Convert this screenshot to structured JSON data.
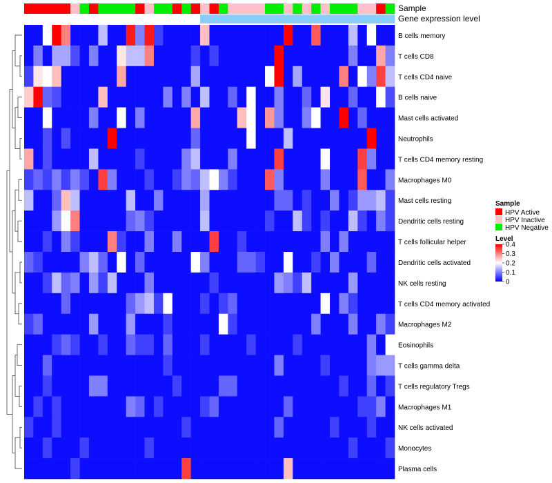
{
  "chart_data": {
    "type": "heatmap",
    "annotation_titles": {
      "sample": "Sample",
      "gene": "Gene expression level"
    },
    "row_labels": [
      "B cells memory",
      "T cells CD8",
      "T cells CD4 naive",
      "B cells naive",
      "Mast cells activated",
      "Neutrophils",
      "T cells CD4 memory resting",
      "Macrophages M0",
      "Mast cells resting",
      "Dendritic cells resting",
      "T cells follicular helper",
      "Dendritic cells activated",
      "NK cells resting",
      "T cells CD4 memory activated",
      "Macrophages M2",
      "Eosinophils",
      "T cells gamma delta",
      "T cells regulatory  Tregs",
      "Macrophages M1",
      "NK cells activated",
      "Monocytes",
      "Plasma cells"
    ],
    "sample_groups": [
      "A",
      "A",
      "A",
      "A",
      "A",
      "I",
      "N",
      "A",
      "N",
      "N",
      "N",
      "N",
      "A",
      "I",
      "N",
      "N",
      "A",
      "N",
      "A",
      "I",
      "A",
      "N",
      "I",
      "I",
      "I",
      "I",
      "N",
      "N",
      "I",
      "N",
      "I",
      "N",
      "I",
      "N",
      "N",
      "N",
      "I",
      "I",
      "A",
      "N"
    ],
    "gene_expression_level": [
      "low",
      "low",
      "low",
      "low",
      "low",
      "low",
      "low",
      "low",
      "low",
      "low",
      "low",
      "low",
      "low",
      "low",
      "low",
      "low",
      "low",
      "low",
      "low",
      "high",
      "high",
      "high",
      "high",
      "high",
      "high",
      "high",
      "high",
      "high",
      "high",
      "high",
      "high",
      "high",
      "high",
      "high",
      "high",
      "high",
      "high",
      "high",
      "high",
      "high"
    ],
    "legend": {
      "sample_title": "Sample",
      "sample_entries": [
        {
          "key": "A",
          "label": "HPV Active",
          "color": "#ff0000"
        },
        {
          "key": "I",
          "label": "HPV Inactive",
          "color": "#ffc0cb"
        },
        {
          "key": "N",
          "label": "HPV Negative",
          "color": "#00ee00"
        }
      ],
      "level_title": "Level",
      "level_ticks": [
        "0.4",
        "0.3",
        "0.2",
        "0.1",
        "0"
      ],
      "level_tick_values": [
        0.4,
        0.3,
        0.2,
        0.1,
        0
      ]
    },
    "gene_level_colors": {
      "low": "#ffffff",
      "high": "#87cefa"
    },
    "color_scale": {
      "low": "#0000ff",
      "mid": "#ffffff",
      "high": "#ff0000",
      "min": 0,
      "mid_value": 0.2,
      "max": 0.4
    },
    "values": [
      [
        0.01,
        0.01,
        0.2,
        0.4,
        0.3,
        0.01,
        0.01,
        0.01,
        0.15,
        0.01,
        0.01,
        0.38,
        0.1,
        0.38,
        0.05,
        0.01,
        0.01,
        0.01,
        0.01,
        0.25,
        0.01,
        0.01,
        0.01,
        0.01,
        0.01,
        0.01,
        0.01,
        0.01,
        0.4,
        0.01,
        0.01,
        0.33,
        0.01,
        0.01,
        0.01,
        0.15,
        0.01,
        0.2,
        0.01,
        0.01
      ],
      [
        0.01,
        0.1,
        0.01,
        0.13,
        0.13,
        0.06,
        0.01,
        0.1,
        0.01,
        0.01,
        0.22,
        0.15,
        0.15,
        0.3,
        0.01,
        0.01,
        0.01,
        0.01,
        0.05,
        0.01,
        0.05,
        0.01,
        0.01,
        0.01,
        0.01,
        0.01,
        0.01,
        0.4,
        0.01,
        0.01,
        0.01,
        0.01,
        0.01,
        0.01,
        0.01,
        0.1,
        0.01,
        0.01,
        0.27,
        0.1
      ],
      [
        0.05,
        0.22,
        0.2,
        0.25,
        0.01,
        0.01,
        0.01,
        0.01,
        0.01,
        0.01,
        0.27,
        0.01,
        0.01,
        0.01,
        0.01,
        0.01,
        0.01,
        0.01,
        0.13,
        0.01,
        0.01,
        0.01,
        0.01,
        0.01,
        0.01,
        0.01,
        0.2,
        0.4,
        0.01,
        0.13,
        0.01,
        0.01,
        0.01,
        0.01,
        0.3,
        0.01,
        0.2,
        0.1,
        0.35,
        0.15
      ],
      [
        0.24,
        0.4,
        0.08,
        0.06,
        0.01,
        0.01,
        0.01,
        0.01,
        0.25,
        0.01,
        0.01,
        0.01,
        0.01,
        0.01,
        0.01,
        0.1,
        0.01,
        0.1,
        0.01,
        0.15,
        0.01,
        0.01,
        0.08,
        0.01,
        0.2,
        0.01,
        0.01,
        0.1,
        0.01,
        0.01,
        0.08,
        0.01,
        0.22,
        0.01,
        0.01,
        0.08,
        0.01,
        0.01,
        0.2,
        0.06
      ],
      [
        0.01,
        0.01,
        0.2,
        0.01,
        0.01,
        0.01,
        0.01,
        0.1,
        0.01,
        0.01,
        0.2,
        0.01,
        0.1,
        0.01,
        0.01,
        0.01,
        0.01,
        0.01,
        0.27,
        0.01,
        0.01,
        0.01,
        0.01,
        0.25,
        0.2,
        0.01,
        0.28,
        0.1,
        0.01,
        0.01,
        0.1,
        0.2,
        0.01,
        0.01,
        0.4,
        0.01,
        0.08,
        0.01,
        0.01,
        0.01
      ],
      [
        0.01,
        0.01,
        0.06,
        0.01,
        0.06,
        0.01,
        0.01,
        0.01,
        0.01,
        0.4,
        0.01,
        0.01,
        0.01,
        0.01,
        0.01,
        0.01,
        0.01,
        0.01,
        0.08,
        0.01,
        0.01,
        0.01,
        0.01,
        0.01,
        0.2,
        0.01,
        0.01,
        0.01,
        0.15,
        0.01,
        0.01,
        0.01,
        0.01,
        0.01,
        0.01,
        0.01,
        0.01,
        0.4,
        0.01,
        0.01
      ],
      [
        0.27,
        0.01,
        0.06,
        0.01,
        0.01,
        0.01,
        0.01,
        0.15,
        0.01,
        0.01,
        0.01,
        0.01,
        0.05,
        0.01,
        0.01,
        0.01,
        0.01,
        0.1,
        0.15,
        0.01,
        0.01,
        0.01,
        0.1,
        0.01,
        0.01,
        0.01,
        0.01,
        0.35,
        0.01,
        0.01,
        0.01,
        0.01,
        0.2,
        0.01,
        0.01,
        0.01,
        0.35,
        0.1,
        0.01,
        0.01
      ],
      [
        0.05,
        0.08,
        0.05,
        0.1,
        0.05,
        0.1,
        0.06,
        0.01,
        0.35,
        0.1,
        0.01,
        0.01,
        0.01,
        0.05,
        0.01,
        0.01,
        0.05,
        0.1,
        0.08,
        0.15,
        0.2,
        0.1,
        0.05,
        0.01,
        0.01,
        0.01,
        0.33,
        0.1,
        0.01,
        0.01,
        0.01,
        0.01,
        0.1,
        0.01,
        0.01,
        0.01,
        0.33,
        0.01,
        0.01,
        0.1
      ],
      [
        0.15,
        0.01,
        0.01,
        0.08,
        0.25,
        0.15,
        0.01,
        0.01,
        0.01,
        0.01,
        0.01,
        0.15,
        0.01,
        0.01,
        0.1,
        0.01,
        0.01,
        0.01,
        0.01,
        0.13,
        0.01,
        0.01,
        0.01,
        0.01,
        0.01,
        0.01,
        0.01,
        0.08,
        0.08,
        0.01,
        0.05,
        0.01,
        0.01,
        0.1,
        0.01,
        0.05,
        0.12,
        0.12,
        0.15,
        0.05
      ],
      [
        0.01,
        0.01,
        0.01,
        0.12,
        0.2,
        0.3,
        0.01,
        0.01,
        0.01,
        0.01,
        0.01,
        0.08,
        0.1,
        0.05,
        0.01,
        0.01,
        0.01,
        0.01,
        0.01,
        0.15,
        0.01,
        0.01,
        0.01,
        0.01,
        0.01,
        0.01,
        0.05,
        0.01,
        0.01,
        0.15,
        0.05,
        0.01,
        0.05,
        0.01,
        0.01,
        0.15,
        0.05,
        0.01,
        0.1,
        0.05
      ],
      [
        0.01,
        0.01,
        0.05,
        0.01,
        0.1,
        0.05,
        0.01,
        0.01,
        0.01,
        0.3,
        0.05,
        0.01,
        0.01,
        0.1,
        0.01,
        0.01,
        0.1,
        0.01,
        0.01,
        0.01,
        0.35,
        0.01,
        0.01,
        0.05,
        0.01,
        0.01,
        0.01,
        0.01,
        0.01,
        0.01,
        0.01,
        0.01,
        0.1,
        0.01,
        0.1,
        0.01,
        0.01,
        0.01,
        0.01,
        0.01
      ],
      [
        0.08,
        0.05,
        0.01,
        0.01,
        0.01,
        0.01,
        0.1,
        0.15,
        0.08,
        0.01,
        0.2,
        0.01,
        0.08,
        0.01,
        0.01,
        0.01,
        0.01,
        0.01,
        0.2,
        0.1,
        0.01,
        0.01,
        0.01,
        0.08,
        0.08,
        0.05,
        0.01,
        0.01,
        0.2,
        0.01,
        0.01,
        0.05,
        0.01,
        0.1,
        0.01,
        0.01,
        0.01,
        0.08,
        0.01,
        0.01
      ],
      [
        0.01,
        0.01,
        0.05,
        0.15,
        0.08,
        0.1,
        0.01,
        0.12,
        0.05,
        0.15,
        0.01,
        0.01,
        0.01,
        0.1,
        0.01,
        0.01,
        0.01,
        0.01,
        0.01,
        0.01,
        0.05,
        0.01,
        0.01,
        0.01,
        0.01,
        0.01,
        0.01,
        0.12,
        0.1,
        0.05,
        0.15,
        0.01,
        0.01,
        0.01,
        0.01,
        0.12,
        0.01,
        0.01,
        0.01,
        0.01
      ],
      [
        0.01,
        0.01,
        0.01,
        0.01,
        0.08,
        0.01,
        0.01,
        0.01,
        0.01,
        0.01,
        0.01,
        0.08,
        0.12,
        0.15,
        0.05,
        0.2,
        0.01,
        0.01,
        0.01,
        0.05,
        0.01,
        0.05,
        0.08,
        0.01,
        0.01,
        0.01,
        0.01,
        0.01,
        0.01,
        0.01,
        0.01,
        0.01,
        0.2,
        0.01,
        0.1,
        0.05,
        0.01,
        0.01,
        0.01,
        0.01
      ],
      [
        0.05,
        0.08,
        0.01,
        0.01,
        0.01,
        0.01,
        0.01,
        0.12,
        0.01,
        0.01,
        0.01,
        0.12,
        0.01,
        0.01,
        0.01,
        0.05,
        0.01,
        0.01,
        0.01,
        0.01,
        0.01,
        0.2,
        0.05,
        0.01,
        0.01,
        0.01,
        0.01,
        0.01,
        0.01,
        0.01,
        0.01,
        0.1,
        0.01,
        0.01,
        0.01,
        0.1,
        0.01,
        0.01,
        0.1,
        0.05
      ],
      [
        0.01,
        0.01,
        0.01,
        0.05,
        0.08,
        0.05,
        0.01,
        0.01,
        0.05,
        0.01,
        0.01,
        0.08,
        0.05,
        0.05,
        0.01,
        0.08,
        0.01,
        0.01,
        0.01,
        0.05,
        0.01,
        0.01,
        0.01,
        0.01,
        0.05,
        0.01,
        0.01,
        0.01,
        0.01,
        0.05,
        0.01,
        0.01,
        0.01,
        0.01,
        0.01,
        0.01,
        0.01,
        0.1,
        0.01,
        0.2
      ],
      [
        0.01,
        0.01,
        0.08,
        0.01,
        0.01,
        0.01,
        0.01,
        0.01,
        0.01,
        0.01,
        0.01,
        0.01,
        0.01,
        0.01,
        0.01,
        0.05,
        0.01,
        0.01,
        0.01,
        0.01,
        0.01,
        0.01,
        0.01,
        0.01,
        0.01,
        0.01,
        0.01,
        0.1,
        0.01,
        0.01,
        0.01,
        0.01,
        0.05,
        0.01,
        0.01,
        0.01,
        0.01,
        0.1,
        0.12,
        0.12
      ],
      [
        0.01,
        0.01,
        0.05,
        0.01,
        0.01,
        0.01,
        0.01,
        0.1,
        0.1,
        0.01,
        0.01,
        0.01,
        0.01,
        0.01,
        0.01,
        0.01,
        0.05,
        0.01,
        0.01,
        0.01,
        0.01,
        0.08,
        0.08,
        0.01,
        0.01,
        0.01,
        0.01,
        0.01,
        0.01,
        0.01,
        0.01,
        0.01,
        0.01,
        0.01,
        0.05,
        0.01,
        0.01,
        0.08,
        0.01,
        0.05
      ],
      [
        0.01,
        0.05,
        0.01,
        0.05,
        0.01,
        0.01,
        0.01,
        0.01,
        0.01,
        0.01,
        0.01,
        0.1,
        0.08,
        0.01,
        0.05,
        0.01,
        0.01,
        0.01,
        0.01,
        0.05,
        0.08,
        0.01,
        0.01,
        0.01,
        0.01,
        0.01,
        0.01,
        0.01,
        0.08,
        0.01,
        0.01,
        0.01,
        0.01,
        0.01,
        0.01,
        0.01,
        0.05,
        0.05,
        0.1,
        0.01
      ],
      [
        0.05,
        0.01,
        0.01,
        0.05,
        0.01,
        0.01,
        0.01,
        0.01,
        0.01,
        0.01,
        0.01,
        0.01,
        0.01,
        0.01,
        0.01,
        0.01,
        0.01,
        0.05,
        0.01,
        0.01,
        0.01,
        0.01,
        0.01,
        0.01,
        0.01,
        0.01,
        0.01,
        0.08,
        0.01,
        0.01,
        0.01,
        0.01,
        0.01,
        0.05,
        0.01,
        0.01,
        0.01,
        0.05,
        0.01,
        0.01
      ],
      [
        0.01,
        0.01,
        0.05,
        0.01,
        0.01,
        0.01,
        0.05,
        0.01,
        0.01,
        0.01,
        0.01,
        0.01,
        0.01,
        0.05,
        0.01,
        0.01,
        0.01,
        0.01,
        0.01,
        0.01,
        0.01,
        0.01,
        0.01,
        0.01,
        0.01,
        0.01,
        0.01,
        0.01,
        0.01,
        0.01,
        0.01,
        0.01,
        0.01,
        0.01,
        0.01,
        0.05,
        0.01,
        0.01,
        0.01,
        0.05
      ],
      [
        0.01,
        0.01,
        0.01,
        0.01,
        0.01,
        0.05,
        0.01,
        0.01,
        0.01,
        0.01,
        0.01,
        0.01,
        0.01,
        0.01,
        0.01,
        0.01,
        0.01,
        0.35,
        0.01,
        0.01,
        0.01,
        0.01,
        0.01,
        0.01,
        0.01,
        0.01,
        0.01,
        0.01,
        0.25,
        0.01,
        0.01,
        0.01,
        0.01,
        0.01,
        0.01,
        0.01,
        0.01,
        0.01,
        0.01,
        0.01
      ]
    ]
  }
}
